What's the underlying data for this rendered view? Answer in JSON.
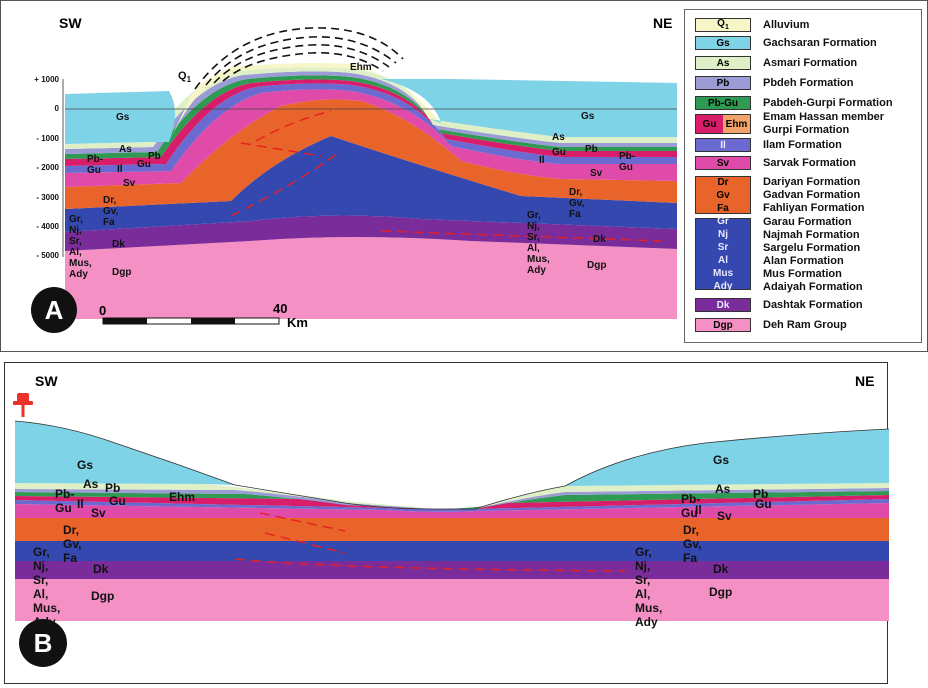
{
  "panel_a": {
    "label": "A",
    "orientation_left": "SW",
    "orientation_right": "NE",
    "depth_ticks": [
      "+ 1000",
      "0",
      "- 1000",
      "- 2000",
      "- 3000",
      "- 4000",
      "- 5000"
    ],
    "scale": {
      "start": "0",
      "end": "40",
      "unit": "Km"
    },
    "units": {
      "q1": "Q",
      "q1_sub": "1",
      "ehm": "Ehm",
      "gs_left": "Gs",
      "gs_right": "Gs",
      "as_left": "As",
      "as_right": "As",
      "pbgu_left": "Pb-Gu",
      "pb_left": "Pb",
      "gu_left": "Gu",
      "il_left": "Il",
      "gu_right": "Gu",
      "pb_right": "Pb",
      "pbgu_right": "Pb-Gu",
      "il_right": "Il",
      "sv_left": "Sv",
      "sv_right": "Sv",
      "drgvfa_left": "Dr, Gv, Fa",
      "drgvfa_right": "Dr, Gv, Fa",
      "gr_left": "Gr, Nj, Sr, Al, Mus, Ady",
      "gr_right": "Gr, Nj, Sr, Al, Mus, Ady",
      "dk_left": "Dk",
      "dk_right": "Dk",
      "dgp_left": "Dgp",
      "dgp_right": "Dgp"
    }
  },
  "panel_b": {
    "label": "B",
    "orientation_left": "SW",
    "orientation_right": "NE",
    "units": {
      "gs_left": "Gs",
      "gs_right": "Gs",
      "as_left": "As",
      "pb_left": "Pb",
      "pbgu_left": "Pb-Gu",
      "il_left": "Il",
      "gu_left": "Gu",
      "ehm": "Ehm",
      "sv_left": "Sv",
      "as_right": "As",
      "pb_right": "Pb",
      "pbgu_right": "Pb-Gu",
      "gu_right": "Gu",
      "il_right": "Il",
      "sv_right": "Sv",
      "drgvfa_left": "Dr, Gv, Fa",
      "drgvfa_right": "Dr, Gv, Fa",
      "gr_left": "Gr, Nj, Sr, Al, Mus, Ady",
      "gr_right": "Gr, Nj, Sr, Al, Mus, Ady",
      "dk_left": "Dk",
      "dk_right": "Dk",
      "dgp_left": "Dgp",
      "dgp_right": "Dgp"
    }
  },
  "legend": [
    {
      "codes": [
        "Q1"
      ],
      "color": "#f6f6c8",
      "names": [
        "Alluvium"
      ]
    },
    {
      "codes": [
        "Gs"
      ],
      "color": "#7fd3e6",
      "names": [
        "Gachsaran Formation"
      ]
    },
    {
      "codes": [
        "As"
      ],
      "color": "#dff0c6",
      "names": [
        "Asmari Formation"
      ]
    },
    {
      "codes": [
        "Pb"
      ],
      "color": "#9b9bd6",
      "names": [
        "Pbdeh Formation"
      ]
    },
    {
      "codes": [
        "Pb-Gu"
      ],
      "color": "#2e9a52",
      "names": [
        "Pabdeh-Gurpi  Formation"
      ]
    },
    {
      "codes": [
        "Gu",
        "Ehm"
      ],
      "color": "#d81e6a",
      "names": [
        "Emam Hassan member",
        "Gurpi Formation"
      ]
    },
    {
      "codes": [
        "Il"
      ],
      "color": "#6a6ad0",
      "names": [
        "Ilam Formation"
      ]
    },
    {
      "codes": [
        "Sv"
      ],
      "color": "#e04aa8",
      "names": [
        "Sarvak Formation"
      ]
    },
    {
      "codes": [
        "Dr",
        "Gv",
        "Fa"
      ],
      "color": "#e8642a",
      "names": [
        "Dariyan Formation",
        "Gadvan Formation",
        "Fahliyan Formation"
      ]
    },
    {
      "codes": [
        "Gr",
        "Nj",
        "Sr",
        "Al",
        "Mus",
        "Ady"
      ],
      "color": "#3548b0",
      "names": [
        "Garau Formation",
        "Najmah Formation",
        "Sargelu Formation",
        "Alan Formation",
        "Mus Formation",
        "Adaiyah Formation"
      ]
    },
    {
      "codes": [
        "Dk"
      ],
      "color": "#7a2d9a",
      "names": [
        "Dashtak Formation"
      ]
    },
    {
      "codes": [
        "Dgp"
      ],
      "color": "#f490c4",
      "names": [
        "Deh Ram Group"
      ]
    }
  ]
}
